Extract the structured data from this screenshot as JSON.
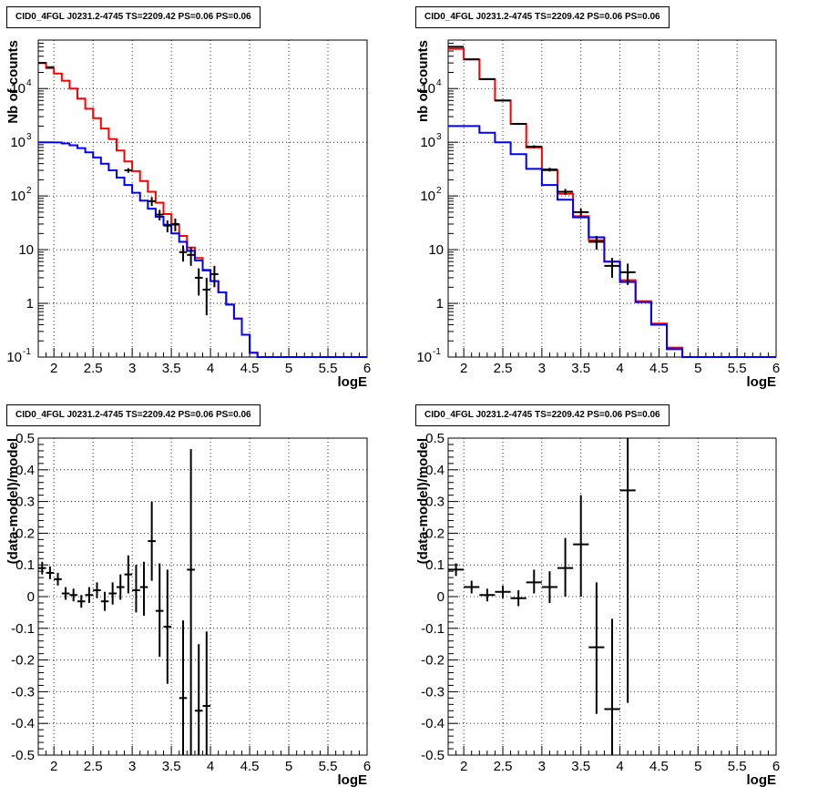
{
  "panels": [
    {
      "title": "CID0_4FGL J0231.2-4745 TS=2209.42 PS=0.06 PS=0.06",
      "chart_data": {
        "type": "line",
        "subtype": "histogram",
        "xlabel": "logE",
        "ylabel": "Nb of counts",
        "xlim": [
          1.8,
          6.0
        ],
        "ylim": [
          0.1,
          80000
        ],
        "yscale": "log",
        "grid": true,
        "x_ticks": [
          "2",
          "2.5",
          "3",
          "3.5",
          "4",
          "4.5",
          "5",
          "5.5",
          "6"
        ],
        "y_ticks": [
          "10^-1",
          "1",
          "10",
          "10^2",
          "10^3",
          "10^4"
        ],
        "bin_edges": [
          1.8,
          1.9,
          2.0,
          2.1,
          2.2,
          2.3,
          2.4,
          2.5,
          2.6,
          2.7,
          2.8,
          2.9,
          3.0,
          3.1,
          3.2,
          3.3,
          3.4,
          3.5,
          3.6,
          3.7,
          3.8,
          3.9,
          4.0,
          4.1,
          4.2,
          4.3,
          4.4,
          4.5,
          4.6,
          4.7,
          4.8,
          4.9,
          5.0,
          5.1,
          5.2,
          5.3,
          5.4,
          5.5,
          5.6,
          5.7,
          5.8,
          5.9,
          6.0
        ],
        "series": [
          {
            "color": "#ff0000",
            "values": [
              30000,
              24000,
              19000,
              14000,
              10000,
              6500,
              4200,
              2800,
              1800,
              1150,
              700,
              440,
              290,
              190,
              120,
              75,
              46,
              29,
              18,
              11,
              7,
              4.2,
              2.6,
              1.6,
              0.95,
              0.52,
              0.26,
              0.12,
              0.1,
              0.1,
              0.1,
              0.1,
              0.1,
              0.1,
              0.1,
              0.1,
              0.1,
              0.1,
              0.1,
              0.1,
              0.1,
              0.1
            ]
          },
          {
            "color": "#0000ff",
            "values": [
              1000,
              1000,
              990,
              950,
              880,
              780,
              650,
              520,
              400,
              300,
              220,
              160,
              115,
              82,
              58,
              41,
              29,
              20,
              14,
              9.5,
              6.3,
              4.1,
              2.6,
              1.6,
              0.95,
              0.52,
              0.26,
              0.12,
              0.1,
              0.1,
              0.1,
              0.1,
              0.1,
              0.1,
              0.1,
              0.1,
              0.1,
              0.1,
              0.1,
              0.1,
              0.1,
              0.1
            ]
          }
        ],
        "data_points": [
          {
            "x": 1.85,
            "y": 30000,
            "ylo": 29000,
            "yhi": 31000
          },
          {
            "x": 1.95,
            "y": 25000,
            "ylo": 24200,
            "yhi": 25800
          },
          {
            "x": 2.95,
            "y": 300,
            "ylo": 270,
            "yhi": 330
          },
          {
            "x": 3.25,
            "y": 80,
            "ylo": 65,
            "yhi": 95
          },
          {
            "x": 3.35,
            "y": 45,
            "ylo": 35,
            "yhi": 55
          },
          {
            "x": 3.45,
            "y": 28,
            "ylo": 21,
            "yhi": 35
          },
          {
            "x": 3.55,
            "y": 30,
            "ylo": 22,
            "yhi": 38
          },
          {
            "x": 3.65,
            "y": 9,
            "ylo": 6,
            "yhi": 12
          },
          {
            "x": 3.75,
            "y": 8,
            "ylo": 5,
            "yhi": 11
          },
          {
            "x": 3.85,
            "y": 3,
            "ylo": 1.4,
            "yhi": 4.5
          },
          {
            "x": 3.95,
            "y": 1.8,
            "ylo": 0.6,
            "yhi": 3
          },
          {
            "x": 4.05,
            "y": 3.5,
            "ylo": 2,
            "yhi": 5
          }
        ]
      }
    },
    {
      "title": "CID0_4FGL J0231.2-4745 TS=2209.42 PS=0.06 PS=0.06",
      "chart_data": {
        "type": "line",
        "subtype": "histogram",
        "xlabel": "logE",
        "ylabel": "nb of counts",
        "xlim": [
          1.8,
          6.0
        ],
        "ylim": [
          0.1,
          80000
        ],
        "yscale": "log",
        "grid": true,
        "x_ticks": [
          "2",
          "2.5",
          "3",
          "3.5",
          "4",
          "4.5",
          "5",
          "5.5",
          "6"
        ],
        "y_ticks": [
          "10^-1",
          "1",
          "10",
          "10^2",
          "10^3",
          "10^4"
        ],
        "bin_edges": [
          1.8,
          2.0,
          2.2,
          2.4,
          2.6,
          2.8,
          3.0,
          3.2,
          3.4,
          3.6,
          3.8,
          4.0,
          4.2,
          4.4,
          4.6,
          4.8,
          5.0,
          5.2,
          5.4,
          5.6,
          5.8,
          6.0
        ],
        "series": [
          {
            "color": "#ff0000",
            "values": [
              55000,
              35000,
              15000,
              6000,
              2200,
              800,
              300,
              110,
              42,
              15,
              6,
              2.7,
              1.1,
              0.42,
              0.15,
              0.1,
              0.1,
              0.1,
              0.1,
              0.1,
              0.1
            ]
          },
          {
            "color": "#0000ff",
            "values": [
              2000,
              2000,
              1500,
              1000,
              600,
              320,
              160,
              85,
              40,
              17,
              6,
              2.5,
              1.05,
              0.4,
              0.14,
              0.1,
              0.1,
              0.1,
              0.1,
              0.1,
              0.1
            ]
          }
        ],
        "data_points": [
          {
            "x": 1.9,
            "y": 60000,
            "ylo": 58000,
            "yhi": 62000
          },
          {
            "x": 2.1,
            "y": 35000,
            "ylo": 34000,
            "yhi": 36000
          },
          {
            "x": 2.3,
            "y": 15000,
            "ylo": 14500,
            "yhi": 15500
          },
          {
            "x": 2.5,
            "y": 6000,
            "ylo": 5800,
            "yhi": 6200
          },
          {
            "x": 2.7,
            "y": 2200,
            "ylo": 2100,
            "yhi": 2300
          },
          {
            "x": 2.9,
            "y": 830,
            "ylo": 780,
            "yhi": 880
          },
          {
            "x": 3.1,
            "y": 310,
            "ylo": 285,
            "yhi": 335
          },
          {
            "x": 3.3,
            "y": 120,
            "ylo": 105,
            "yhi": 135
          },
          {
            "x": 3.5,
            "y": 50,
            "ylo": 42,
            "yhi": 58
          },
          {
            "x": 3.7,
            "y": 14,
            "ylo": 10,
            "yhi": 18
          },
          {
            "x": 3.9,
            "y": 5,
            "ylo": 3,
            "yhi": 7
          },
          {
            "x": 4.1,
            "y": 3.8,
            "ylo": 2.2,
            "yhi": 5.5
          }
        ]
      }
    },
    {
      "title": "CID0_4FGL J0231.2-4745 TS=2209.42 PS=0.06 PS=0.06",
      "chart_data": {
        "type": "scatter",
        "subtype": "error-bars",
        "xlabel": "logE",
        "ylabel": "(data-model)/model",
        "xlim": [
          1.8,
          6.0
        ],
        "ylim": [
          -0.5,
          0.5
        ],
        "grid": true,
        "x_ticks": [
          "2",
          "2.5",
          "3",
          "3.5",
          "4",
          "4.5",
          "5",
          "5.5",
          "6"
        ],
        "y_ticks": [
          "-0.5",
          "-0.4",
          "-0.3",
          "-0.2",
          "-0.1",
          "0",
          "0.1",
          "0.2",
          "0.3",
          "0.4",
          "0.5"
        ],
        "bin_width": 0.1,
        "data_points": [
          {
            "x": 1.85,
            "y": 0.09,
            "ylo": 0.07,
            "yhi": 0.11
          },
          {
            "x": 1.95,
            "y": 0.075,
            "ylo": 0.055,
            "yhi": 0.095
          },
          {
            "x": 2.05,
            "y": 0.055,
            "ylo": 0.035,
            "yhi": 0.075
          },
          {
            "x": 2.15,
            "y": 0.01,
            "ylo": -0.01,
            "yhi": 0.03
          },
          {
            "x": 2.25,
            "y": 0.005,
            "ylo": -0.015,
            "yhi": 0.025
          },
          {
            "x": 2.35,
            "y": -0.015,
            "ylo": -0.035,
            "yhi": 0.005
          },
          {
            "x": 2.45,
            "y": 0.005,
            "ylo": -0.02,
            "yhi": 0.03
          },
          {
            "x": 2.55,
            "y": 0.02,
            "ylo": -0.005,
            "yhi": 0.045
          },
          {
            "x": 2.65,
            "y": -0.015,
            "ylo": -0.045,
            "yhi": 0.015
          },
          {
            "x": 2.75,
            "y": 0.01,
            "ylo": -0.025,
            "yhi": 0.045
          },
          {
            "x": 2.85,
            "y": 0.03,
            "ylo": -0.01,
            "yhi": 0.07
          },
          {
            "x": 2.95,
            "y": 0.07,
            "ylo": 0.01,
            "yhi": 0.13
          },
          {
            "x": 3.05,
            "y": 0.02,
            "ylo": -0.05,
            "yhi": 0.1
          },
          {
            "x": 3.15,
            "y": 0.03,
            "ylo": -0.06,
            "yhi": 0.11
          },
          {
            "x": 3.25,
            "y": 0.175,
            "ylo": 0.05,
            "yhi": 0.3
          },
          {
            "x": 3.35,
            "y": -0.045,
            "ylo": -0.19,
            "yhi": 0.105
          },
          {
            "x": 3.45,
            "y": -0.095,
            "ylo": -0.275,
            "yhi": 0.085
          },
          {
            "x": 3.65,
            "y": -0.32,
            "ylo": -0.5,
            "yhi": -0.075
          },
          {
            "x": 3.75,
            "y": 0.085,
            "ylo": -0.5,
            "yhi": 0.465
          },
          {
            "x": 3.85,
            "y": -0.36,
            "ylo": -0.5,
            "yhi": -0.15
          },
          {
            "x": 3.95,
            "y": -0.345,
            "ylo": -0.5,
            "yhi": -0.11
          }
        ]
      }
    },
    {
      "title": "CID0_4FGL J0231.2-4745 TS=2209.42 PS=0.06 PS=0.06",
      "chart_data": {
        "type": "scatter",
        "subtype": "error-bars",
        "xlabel": "logE",
        "ylabel": "(data-model)/model",
        "xlim": [
          1.8,
          6.0
        ],
        "ylim": [
          -0.5,
          0.5
        ],
        "grid": true,
        "x_ticks": [
          "2",
          "2.5",
          "3",
          "3.5",
          "4",
          "4.5",
          "5",
          "5.5",
          "6"
        ],
        "y_ticks": [
          "-0.5",
          "-0.4",
          "-0.3",
          "-0.2",
          "-0.1",
          "0",
          "0.1",
          "0.2",
          "0.3",
          "0.4",
          "0.5"
        ],
        "bin_width": 0.2,
        "data_points": [
          {
            "x": 1.9,
            "y": 0.085,
            "ylo": 0.065,
            "yhi": 0.105
          },
          {
            "x": 2.1,
            "y": 0.03,
            "ylo": 0.01,
            "yhi": 0.05
          },
          {
            "x": 2.3,
            "y": 0.005,
            "ylo": -0.015,
            "yhi": 0.025
          },
          {
            "x": 2.5,
            "y": 0.015,
            "ylo": -0.005,
            "yhi": 0.035
          },
          {
            "x": 2.7,
            "y": -0.005,
            "ylo": -0.03,
            "yhi": 0.02
          },
          {
            "x": 2.9,
            "y": 0.045,
            "ylo": 0.01,
            "yhi": 0.085
          },
          {
            "x": 3.1,
            "y": 0.03,
            "ylo": -0.02,
            "yhi": 0.08
          },
          {
            "x": 3.3,
            "y": 0.09,
            "ylo": 0.0,
            "yhi": 0.185
          },
          {
            "x": 3.5,
            "y": 0.165,
            "ylo": 0.0,
            "yhi": 0.32
          },
          {
            "x": 3.7,
            "y": -0.16,
            "ylo": -0.37,
            "yhi": 0.045
          },
          {
            "x": 3.9,
            "y": -0.355,
            "ylo": -0.5,
            "yhi": -0.07
          },
          {
            "x": 4.1,
            "y": 0.335,
            "ylo": -0.335,
            "yhi": 0.5
          }
        ]
      }
    }
  ]
}
